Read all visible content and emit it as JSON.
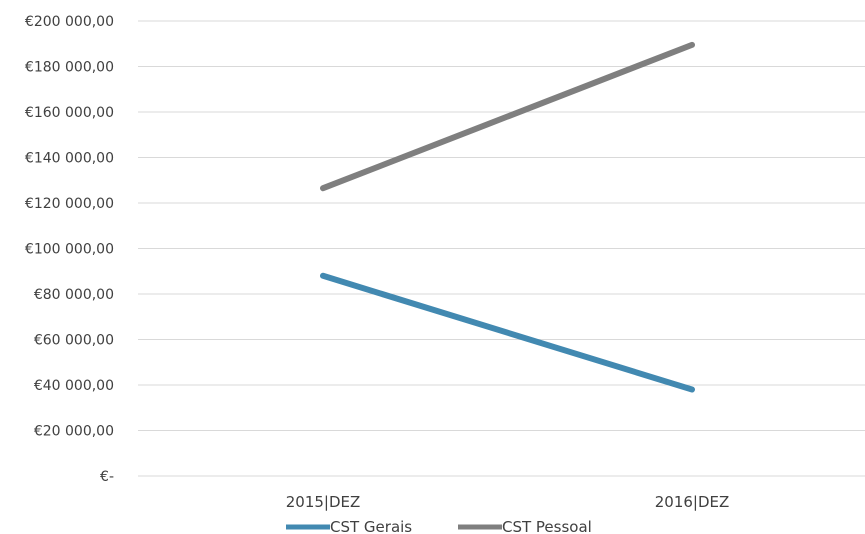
{
  "chart_data": {
    "type": "line",
    "categories": [
      "2015|DEZ",
      "2016|DEZ"
    ],
    "series": [
      {
        "name": "CST Gerais",
        "values": [
          88000,
          38000
        ],
        "color": "#4289b1"
      },
      {
        "name": "CST Pessoal",
        "values": [
          126500,
          189500
        ],
        "color": "#7f7f7f"
      }
    ],
    "ylim": [
      0,
      200000
    ],
    "y_ticks": [
      {
        "value": 200000,
        "label": "€200 000,00"
      },
      {
        "value": 180000,
        "label": "€180 000,00"
      },
      {
        "value": 160000,
        "label": "€160 000,00"
      },
      {
        "value": 140000,
        "label": "€140 000,00"
      },
      {
        "value": 120000,
        "label": "€120 000,00"
      },
      {
        "value": 100000,
        "label": "€100 000,00"
      },
      {
        "value": 80000,
        "label": "€80 000,00"
      },
      {
        "value": 60000,
        "label": "€60 000,00"
      },
      {
        "value": 40000,
        "label": "€40 000,00"
      },
      {
        "value": 20000,
        "label": "€20 000,00"
      },
      {
        "value": 0,
        "label": "€-"
      }
    ],
    "grid": true,
    "legend_position": "bottom"
  }
}
